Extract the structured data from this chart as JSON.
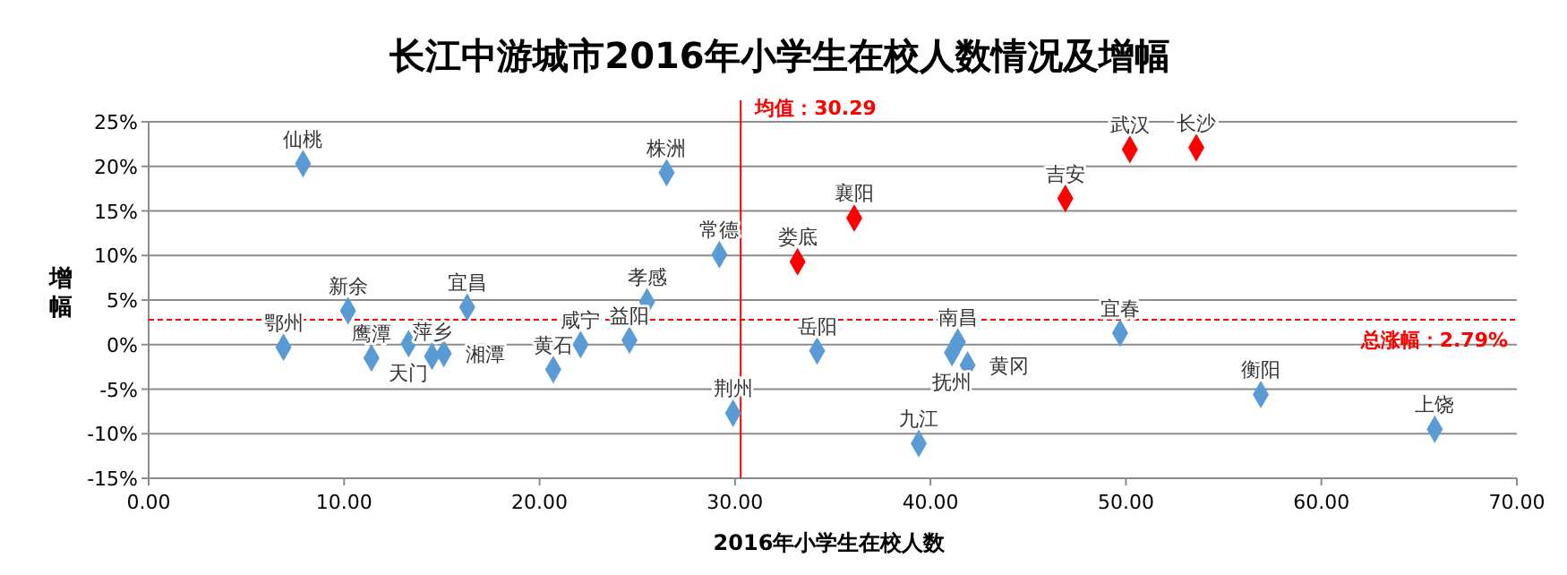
{
  "chart_data": {
    "type": "scatter",
    "title": "长江中游城市2016年小学生在校人数情况及增幅",
    "xlabel": "2016年小学生在校人数",
    "ylabel": "增幅",
    "x": [
      7.9,
      6.9,
      10.2,
      11.4,
      13.3,
      14.5,
      15.1,
      16.3,
      20.7,
      22.1,
      24.6,
      25.5,
      26.5,
      29.2,
      29.9,
      33.2,
      36.1,
      34.2,
      39.4,
      41.4,
      41.1,
      41.9,
      46.9,
      50.2,
      53.6,
      49.7,
      56.9,
      65.8
    ],
    "series": [
      {
        "values": [
          20.3,
          -0.3,
          3.8,
          -1.5,
          0.1,
          -1.3,
          -1.0,
          4.2,
          -2.8,
          0.0,
          0.5,
          4.8,
          19.3,
          10.1,
          -7.7,
          9.3,
          14.2,
          -0.7,
          -11.1,
          0.3,
          -0.9,
          -2.3,
          16.4,
          21.9,
          22.1,
          1.3,
          -5.6,
          -9.5
        ],
        "colors": [
          "#5b9bd5",
          "#5b9bd5",
          "#5b9bd5",
          "#5b9bd5",
          "#5b9bd5",
          "#5b9bd5",
          "#5b9bd5",
          "#5b9bd5",
          "#5b9bd5",
          "#5b9bd5",
          "#5b9bd5",
          "#5b9bd5",
          "#5b9bd5",
          "#5b9bd5",
          "#5b9bd5",
          "#ff0000",
          "#ff0000",
          "#5b9bd5",
          "#5b9bd5",
          "#5b9bd5",
          "#5b9bd5",
          "#5b9bd5",
          "#ff0000",
          "#ff0000",
          "#ff0000",
          "#5b9bd5",
          "#5b9bd5",
          "#5b9bd5"
        ]
      }
    ],
    "annotations": [
      {
        "text": "仙桃",
        "x": 7.9,
        "y": 20.3
      },
      {
        "text": "鄂州",
        "x": 6.9,
        "y": -0.3
      },
      {
        "text": "新余",
        "x": 10.2,
        "y": 3.8
      },
      {
        "text": "鹰潭",
        "x": 11.4,
        "y": -1.5
      },
      {
        "text": "天门",
        "x": 13.3,
        "y": 0.1
      },
      {
        "text": "萍乡",
        "x": 14.5,
        "y": -1.3
      },
      {
        "text": "湘潭",
        "x": 15.1,
        "y": -1.0
      },
      {
        "text": "宜昌",
        "x": 16.3,
        "y": 4.2
      },
      {
        "text": "黄石",
        "x": 20.7,
        "y": -2.8
      },
      {
        "text": "咸宁",
        "x": 22.1,
        "y": 0.0
      },
      {
        "text": "益阳",
        "x": 24.6,
        "y": 0.5
      },
      {
        "text": "孝感",
        "x": 25.5,
        "y": 4.8
      },
      {
        "text": "株洲",
        "x": 26.5,
        "y": 19.3
      },
      {
        "text": "常德",
        "x": 29.2,
        "y": 10.1
      },
      {
        "text": "荆州",
        "x": 29.9,
        "y": -7.7
      },
      {
        "text": "娄底",
        "x": 33.2,
        "y": 9.3
      },
      {
        "text": "襄阳",
        "x": 36.1,
        "y": 14.2
      },
      {
        "text": "岳阳",
        "x": 34.2,
        "y": -0.7
      },
      {
        "text": "九江",
        "x": 39.4,
        "y": -11.1
      },
      {
        "text": "南昌",
        "x": 41.4,
        "y": 0.3
      },
      {
        "text": "抚州",
        "x": 41.1,
        "y": -0.9
      },
      {
        "text": "黄冈",
        "x": 41.9,
        "y": -2.3
      },
      {
        "text": "吉安",
        "x": 46.9,
        "y": 16.4
      },
      {
        "text": "武汉",
        "x": 50.2,
        "y": 21.9
      },
      {
        "text": "长沙",
        "x": 53.6,
        "y": 22.1
      },
      {
        "text": "宜春",
        "x": 49.7,
        "y": 1.3
      },
      {
        "text": "衡阳",
        "x": 56.9,
        "y": -5.6
      },
      {
        "text": "上饶",
        "x": 65.8,
        "y": -9.5
      }
    ],
    "ref_lines": [
      {
        "axis": "x",
        "value": 30.29,
        "label": "均值：30.29",
        "color": "#ff0000",
        "line_style": "solid"
      },
      {
        "axis": "y",
        "value": 2.79,
        "label": "总涨幅：2.79%",
        "color": "#ff0000",
        "line_style": "dashed"
      }
    ],
    "xlim": [
      0,
      70
    ],
    "xticks": [
      {
        "value": 0,
        "label": "0.00"
      },
      {
        "value": 10,
        "label": "10.00"
      },
      {
        "value": 20,
        "label": "20.00"
      },
      {
        "value": 30,
        "label": "30.00"
      },
      {
        "value": 40,
        "label": "40.00"
      },
      {
        "value": 50,
        "label": "50.00"
      },
      {
        "value": 60,
        "label": "60.00"
      },
      {
        "value": 70,
        "label": "70.00"
      }
    ],
    "ylim": [
      -15,
      25
    ],
    "yticks": [
      {
        "value": -15,
        "label": "-15%"
      },
      {
        "value": -10,
        "label": "-10%"
      },
      {
        "value": -5,
        "label": "-5%"
      },
      {
        "value": 0,
        "label": "0%"
      },
      {
        "value": 5,
        "label": "5%"
      },
      {
        "value": 10,
        "label": "10%"
      },
      {
        "value": 15,
        "label": "15%"
      },
      {
        "value": 20,
        "label": "20%"
      },
      {
        "value": 25,
        "label": "25%"
      }
    ],
    "grid": "y",
    "marker": "diamond"
  }
}
